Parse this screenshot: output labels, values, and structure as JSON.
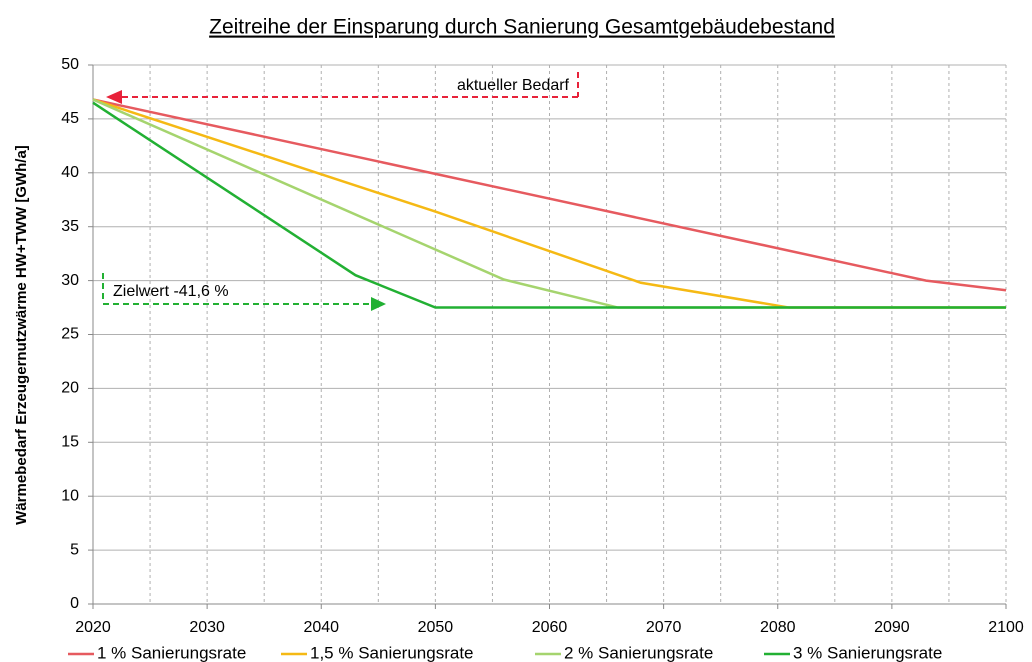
{
  "chart_data": {
    "type": "line",
    "title": "Zeitreihe der Einsparung durch Sanierung Gesamtgebäudebestand",
    "y_label": "Wärmebedarf Erzeugernutzwärme HW+TWW [GWh/a]",
    "xlim": [
      2020,
      2100
    ],
    "xticks": [
      2020,
      2030,
      2040,
      2050,
      2060,
      2070,
      2080,
      2090,
      2100
    ],
    "xminorticks": [
      2025,
      2035,
      2045,
      2055,
      2065,
      2075,
      2085,
      2095
    ],
    "ylim": [
      0,
      50
    ],
    "yticks": [
      0,
      5,
      10,
      15,
      20,
      25,
      30,
      35,
      40,
      45,
      50
    ],
    "grid": true,
    "legend": "bottom",
    "annotations": [
      {
        "text": "aktueller Bedarf",
        "color": "#e8223a"
      },
      {
        "text": "Zielwert -41,6 %",
        "color": "#22b033"
      }
    ],
    "series": [
      {
        "name": "1 % Sanierungsrate",
        "color": "#e65a5f",
        "x": [
          2020,
          2050,
          2080,
          2093,
          2100
        ],
        "values": [
          46.8,
          39.9,
          33.0,
          30.0,
          29.1
        ]
      },
      {
        "name": "1,5 % Sanierungsrate",
        "color": "#f5b914",
        "x": [
          2020,
          2050,
          2068,
          2081,
          2100
        ],
        "values": [
          46.8,
          36.4,
          29.8,
          27.5,
          27.5
        ]
      },
      {
        "name": "2 % Sanierungsrate",
        "color": "#a5d46e",
        "x": [
          2020,
          2056,
          2066,
          2100
        ],
        "values": [
          46.8,
          30.1,
          27.5,
          27.5
        ]
      },
      {
        "name": "3 % Sanierungsrate",
        "color": "#22b033",
        "x": [
          2020,
          2043,
          2050,
          2100
        ],
        "values": [
          46.5,
          30.5,
          27.5,
          27.5
        ]
      }
    ]
  }
}
